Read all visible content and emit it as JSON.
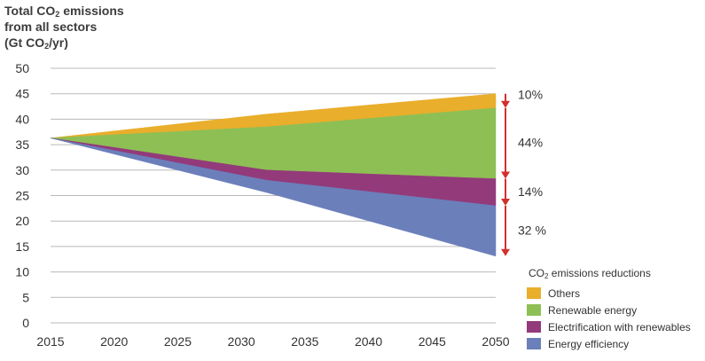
{
  "chart_data": {
    "type": "area",
    "title": {
      "line1_prefix": "Total CO",
      "line1_sub": "2",
      "line1_suffix": " emissions",
      "line2": "from all sectors",
      "line3_prefix": "(Gt CO",
      "line3_sub": "2",
      "line3_suffix": "/yr)"
    },
    "x_ticks": [
      "2015",
      "2020",
      "2025",
      "2030",
      "2035",
      "2040",
      "2045",
      "2050"
    ],
    "y_ticks": [
      "0",
      "5",
      "10",
      "15",
      "20",
      "25",
      "30",
      "35",
      "40",
      "45",
      "50"
    ],
    "xlim": [
      2015,
      2050
    ],
    "ylim": [
      0,
      50
    ],
    "grid": true,
    "x": [
      2015,
      2032,
      2050
    ],
    "boundaries": {
      "top": [
        36.3,
        41.0,
        45.0
      ],
      "others_lower": [
        36.3,
        38.5,
        42.2
      ],
      "renewable_lower": [
        36.3,
        30.0,
        28.3
      ],
      "electrification_lower": [
        36.3,
        28.0,
        23.0
      ],
      "efficiency_lower": [
        36.3,
        25.6,
        13.1
      ]
    },
    "series": [
      {
        "name": "Others",
        "color": "#e9ae2b",
        "share": "10%",
        "upper": "top",
        "lower": "others_lower"
      },
      {
        "name": "Renewable energy",
        "color": "#8ebf55",
        "share": "44%",
        "upper": "others_lower",
        "lower": "renewable_lower"
      },
      {
        "name": "Electrification with renewables",
        "color": "#933a7a",
        "share": "14%",
        "upper": "renewable_lower",
        "lower": "electrification_lower"
      },
      {
        "name": "Energy efficiency",
        "color": "#6b7fba",
        "share": "32 %",
        "upper": "electrification_lower",
        "lower": "efficiency_lower"
      }
    ],
    "arrow_color": "#d0312d",
    "legend": {
      "title_prefix": "CO",
      "title_sub": "2",
      "title_suffix": " emissions reductions",
      "placement": "bottom-right"
    }
  }
}
